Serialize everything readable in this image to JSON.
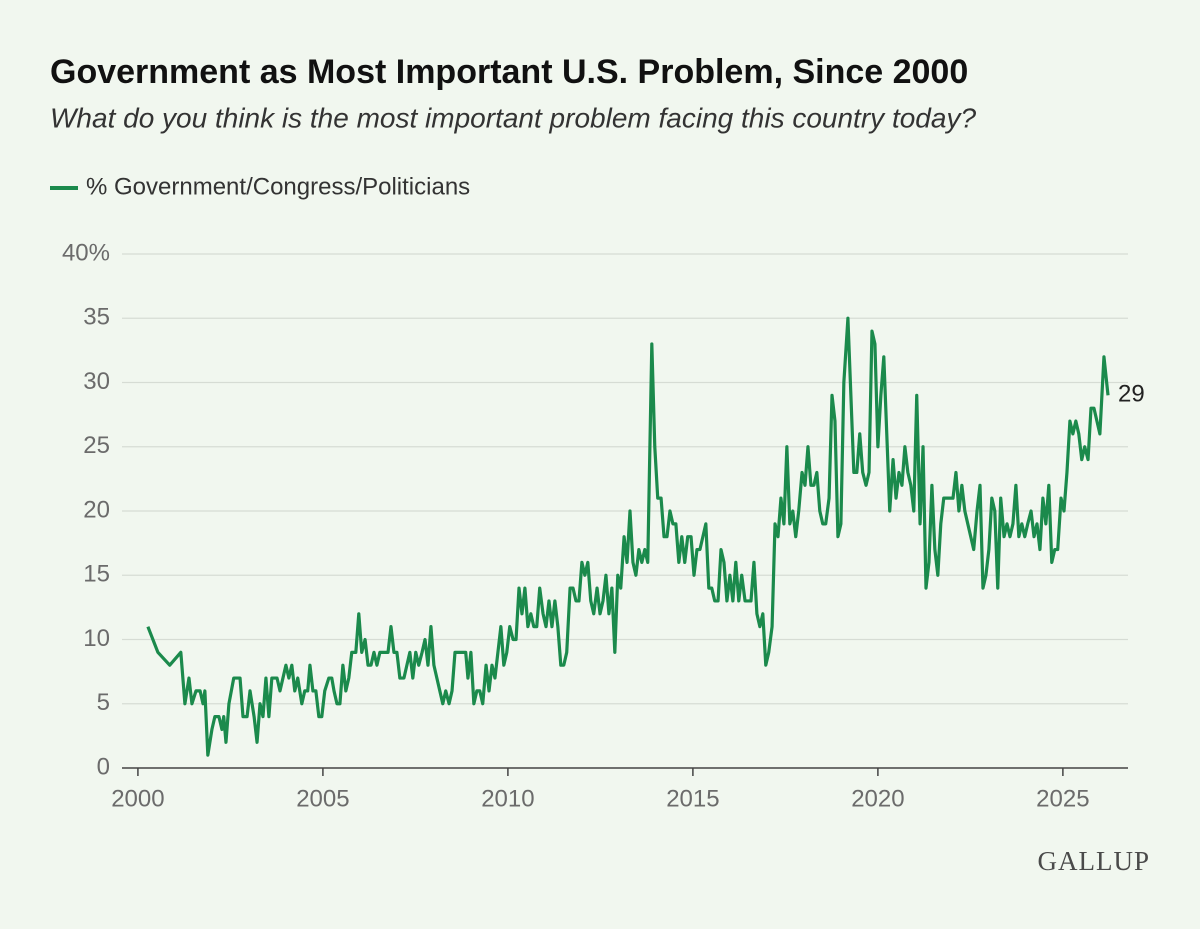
{
  "chart_data": {
    "type": "line",
    "title": "Government as Most Important U.S. Problem, Since 2000",
    "subtitle": "What do you think is the most important problem facing this country today?",
    "logo": "GALLUP",
    "xlim": [
      1999.57,
      2026.76
    ],
    "xticks": [
      2000,
      2005,
      2010,
      2015,
      2020,
      2025
    ],
    "ylim": [
      0,
      40
    ],
    "yticks": [
      0,
      5,
      10,
      15,
      20,
      25,
      30,
      35,
      {
        "value": 40,
        "label": "40%"
      }
    ],
    "grid": true,
    "x": [
      2000.27,
      2000.54,
      2000.86,
      2001.16,
      2001.27,
      2001.38,
      2001.46,
      2001.57,
      2001.68,
      2001.76,
      2001.81,
      2001.89,
      2002.0,
      2002.08,
      2002.19,
      2002.27,
      2002.32,
      2002.38,
      2002.46,
      2002.59,
      2002.76,
      2002.84,
      2002.95,
      2003.03,
      2003.14,
      2003.22,
      2003.3,
      2003.38,
      2003.46,
      2003.54,
      2003.62,
      2003.76,
      2003.84,
      2004.0,
      2004.08,
      2004.16,
      2004.24,
      2004.32,
      2004.43,
      2004.51,
      2004.59,
      2004.65,
      2004.73,
      2004.81,
      2004.89,
      2004.97,
      2005.05,
      2005.16,
      2005.24,
      2005.3,
      2005.38,
      2005.46,
      2005.54,
      2005.62,
      2005.7,
      2005.78,
      2005.89,
      2005.97,
      2006.05,
      2006.14,
      2006.22,
      2006.3,
      2006.38,
      2006.46,
      2006.54,
      2006.65,
      2006.76,
      2006.84,
      2006.92,
      2007.0,
      2007.08,
      2007.19,
      2007.27,
      2007.35,
      2007.43,
      2007.51,
      2007.59,
      2007.68,
      2007.76,
      2007.84,
      2007.92,
      2008.0,
      2008.08,
      2008.16,
      2008.24,
      2008.32,
      2008.41,
      2008.49,
      2008.57,
      2008.73,
      2008.86,
      2008.92,
      2009.0,
      2009.08,
      2009.16,
      2009.24,
      2009.32,
      2009.41,
      2009.49,
      2009.57,
      2009.65,
      2009.73,
      2009.81,
      2009.89,
      2009.97,
      2010.05,
      2010.14,
      2010.22,
      2010.3,
      2010.38,
      2010.46,
      2010.54,
      2010.62,
      2010.7,
      2010.78,
      2010.86,
      2010.95,
      2011.03,
      2011.11,
      2011.19,
      2011.27,
      2011.35,
      2011.43,
      2011.51,
      2011.59,
      2011.68,
      2011.76,
      2011.84,
      2011.92,
      2012.0,
      2012.08,
      2012.16,
      2012.24,
      2012.32,
      2012.41,
      2012.49,
      2012.57,
      2012.65,
      2012.73,
      2012.81,
      2012.89,
      2012.97,
      2013.05,
      2013.14,
      2013.22,
      2013.3,
      2013.38,
      2013.46,
      2013.54,
      2013.62,
      2013.7,
      2013.78,
      2013.89,
      2013.97,
      2014.05,
      2014.14,
      2014.22,
      2014.3,
      2014.38,
      2014.46,
      2014.54,
      2014.62,
      2014.7,
      2014.78,
      2014.86,
      2014.95,
      2015.03,
      2015.11,
      2015.19,
      2015.27,
      2015.35,
      2015.43,
      2015.51,
      2015.59,
      2015.68,
      2015.76,
      2015.84,
      2015.92,
      2016.0,
      2016.08,
      2016.16,
      2016.24,
      2016.32,
      2016.41,
      2016.49,
      2016.57,
      2016.65,
      2016.73,
      2016.81,
      2016.89,
      2016.97,
      2017.05,
      2017.14,
      2017.22,
      2017.3,
      2017.38,
      2017.46,
      2017.54,
      2017.62,
      2017.7,
      2017.78,
      2017.86,
      2017.95,
      2018.03,
      2018.11,
      2018.19,
      2018.27,
      2018.35,
      2018.43,
      2018.51,
      2018.59,
      2018.68,
      2018.76,
      2018.84,
      2018.92,
      2019.0,
      2019.08,
      2019.19,
      2019.27,
      2019.35,
      2019.43,
      2019.51,
      2019.59,
      2019.68,
      2019.76,
      2019.84,
      2019.92,
      2020.0,
      2020.08,
      2020.16,
      2020.24,
      2020.32,
      2020.41,
      2020.49,
      2020.57,
      2020.65,
      2020.73,
      2020.81,
      2020.89,
      2020.97,
      2021.05,
      2021.14,
      2021.22,
      2021.3,
      2021.38,
      2021.46,
      2021.54,
      2021.62,
      2021.7,
      2021.78,
      2021.86,
      2021.95,
      2022.03,
      2022.11,
      2022.19,
      2022.27,
      2022.35,
      2022.43,
      2022.51,
      2022.59,
      2022.68,
      2022.76,
      2022.84,
      2022.92,
      2023.0,
      2023.08,
      2023.16,
      2023.24,
      2023.32,
      2023.41,
      2023.49,
      2023.57,
      2023.65,
      2023.73,
      2023.81,
      2023.89,
      2023.97,
      2024.05,
      2024.14,
      2024.22,
      2024.3,
      2024.38,
      2024.46,
      2024.54,
      2024.62,
      2024.7,
      2024.78,
      2024.86,
      2024.95,
      2025.03,
      2025.11,
      2025.19,
      2025.27,
      2025.35,
      2025.43,
      2025.51,
      2025.59,
      2025.68,
      2025.76,
      2025.84,
      2025.92,
      2026.0,
      2026.11,
      2026.22
    ],
    "series": [
      {
        "name": "% Government/Congress/Politicians",
        "color": "#1b8a4c",
        "values": [
          11,
          9,
          8,
          9,
          5,
          7,
          5,
          6,
          6,
          5,
          6,
          1,
          3,
          4,
          4,
          3,
          4,
          2,
          5,
          7,
          7,
          4,
          4,
          6,
          4,
          2,
          5,
          4,
          7,
          4,
          7,
          7,
          6,
          8,
          7,
          8,
          6,
          7,
          5,
          6,
          6,
          8,
          6,
          6,
          4,
          4,
          6,
          7,
          7,
          6,
          5,
          5,
          8,
          6,
          7,
          9,
          9,
          12,
          9,
          10,
          8,
          8,
          9,
          8,
          9,
          9,
          9,
          11,
          9,
          9,
          7,
          7,
          8,
          9,
          7,
          9,
          8,
          9,
          10,
          8,
          11,
          8,
          7,
          6,
          5,
          6,
          5,
          6,
          9,
          9,
          9,
          7,
          9,
          5,
          6,
          6,
          5,
          8,
          6,
          8,
          7,
          9,
          11,
          8,
          9,
          11,
          10,
          10,
          14,
          12,
          14,
          11,
          12,
          11,
          11,
          14,
          12,
          11,
          13,
          11,
          13,
          11,
          8,
          8,
          9,
          14,
          14,
          13,
          13,
          16,
          15,
          16,
          13,
          12,
          14,
          12,
          13,
          15,
          12,
          14,
          9,
          15,
          14,
          18,
          16,
          20,
          16,
          15,
          17,
          16,
          17,
          16,
          33,
          25,
          21,
          21,
          18,
          18,
          20,
          19,
          19,
          16,
          18,
          16,
          18,
          18,
          15,
          17,
          17,
          18,
          19,
          14,
          14,
          13,
          13,
          17,
          16,
          13,
          15,
          13,
          16,
          13,
          15,
          13,
          13,
          13,
          16,
          12,
          11,
          12,
          8,
          9,
          11,
          19,
          18,
          21,
          19,
          25,
          19,
          20,
          18,
          20,
          23,
          22,
          25,
          22,
          22,
          23,
          20,
          19,
          19,
          21,
          29,
          27,
          18,
          19,
          30,
          35,
          29,
          23,
          23,
          26,
          23,
          22,
          23,
          34,
          33,
          25,
          29,
          32,
          26,
          20,
          24,
          21,
          23,
          22,
          25,
          23,
          22,
          20,
          29,
          19,
          25,
          14,
          16,
          22,
          17,
          15,
          19,
          21,
          21,
          21,
          21,
          23,
          20,
          22,
          20,
          19,
          18,
          17,
          20,
          22,
          14,
          15,
          17,
          21,
          20,
          14,
          21,
          18,
          19,
          18,
          19,
          22,
          18,
          19,
          18,
          19,
          20,
          18,
          19,
          17,
          21,
          19,
          22,
          16,
          17,
          17,
          21,
          20,
          23,
          27,
          26,
          27,
          26,
          24,
          25,
          24,
          28,
          28,
          27,
          26,
          32,
          29
        ]
      }
    ]
  }
}
